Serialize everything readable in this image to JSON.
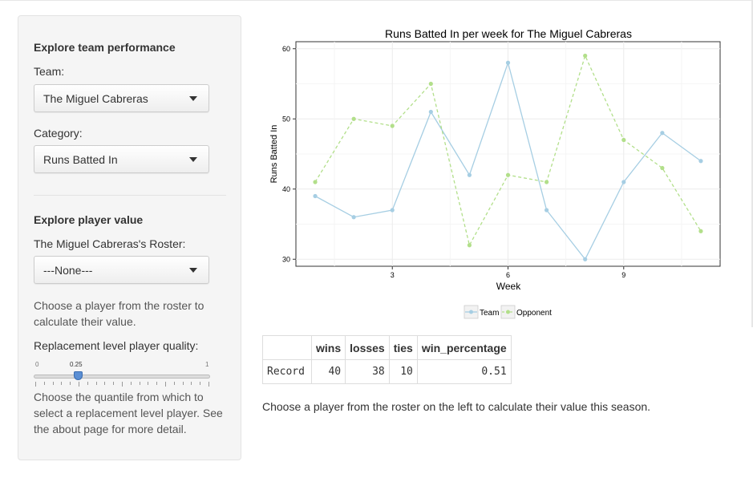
{
  "sidebar": {
    "team_section": {
      "heading": "Explore team performance",
      "team_label": "Team:",
      "team_value": "The Miguel Cabreras",
      "category_label": "Category:",
      "category_value": "Runs Batted In"
    },
    "player_section": {
      "heading": "Explore player value",
      "roster_label": "The Miguel Cabreras's Roster:",
      "roster_value": "---None---",
      "roster_help": "Choose a player from the roster to calculate their value.",
      "slider_label": "Replacement level player quality:",
      "slider_min": "0",
      "slider_max": "1",
      "slider_value": "0.25",
      "slider_help": "Choose the quantile from which to select a replacement level player. See the about page for more detail."
    }
  },
  "chart_data": {
    "type": "line",
    "title": "Runs Batted In per week for The Miguel Cabreras",
    "xlabel": "Week",
    "ylabel": "Runs Batted In",
    "x": [
      1,
      2,
      3,
      4,
      5,
      6,
      7,
      8,
      9,
      10,
      11
    ],
    "xlim": [
      0.5,
      11.5
    ],
    "ylim": [
      29,
      61
    ],
    "xticks": [
      3,
      6,
      9
    ],
    "yticks": [
      30,
      40,
      50,
      60
    ],
    "grid": true,
    "legend_position": "bottom",
    "series": [
      {
        "name": "Team",
        "color": "#a6cee3",
        "dash": "solid",
        "values": [
          39,
          36,
          37,
          51,
          42,
          58,
          37,
          30,
          41,
          48,
          44
        ]
      },
      {
        "name": "Opponent",
        "color": "#b2df8a",
        "dash": "dashed",
        "values": [
          41,
          50,
          49,
          55,
          32,
          42,
          41,
          59,
          47,
          43,
          34
        ]
      }
    ]
  },
  "record_table": {
    "headers": [
      "",
      "wins",
      "losses",
      "ties",
      "win_percentage"
    ],
    "row_name": "Record",
    "values": [
      "40",
      "38",
      "10",
      "0.51"
    ]
  },
  "main_help": "Choose a player from the roster on the left to calculate their value this season."
}
